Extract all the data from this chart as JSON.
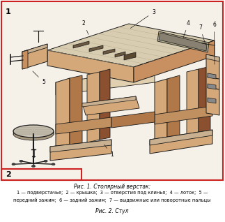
{
  "title_line1": "Рис. 1. Столярный верстак:",
  "caption_line1": "1 — подверстачье;  2 — крышка;  3 — отверстия под клинья;  4 — лоток;  5 —",
  "caption_line2": "передний зажим;  6 — задний зажим;  7 — выдвижные или поворотные пальцы",
  "title_line3": "Рис. 2. Стул",
  "bg_color": "#ffffff",
  "border_color": "#cc2222",
  "fig1_label": "1",
  "fig2_label": "2",
  "wood_top": "#c8b090",
  "wood_front": "#c89060",
  "wood_side": "#b07848",
  "wood_dark": "#8b5030",
  "wood_hatch": "#d4a878",
  "line_color": "#1a1a1a",
  "bg_cream": "#f5f0e8"
}
